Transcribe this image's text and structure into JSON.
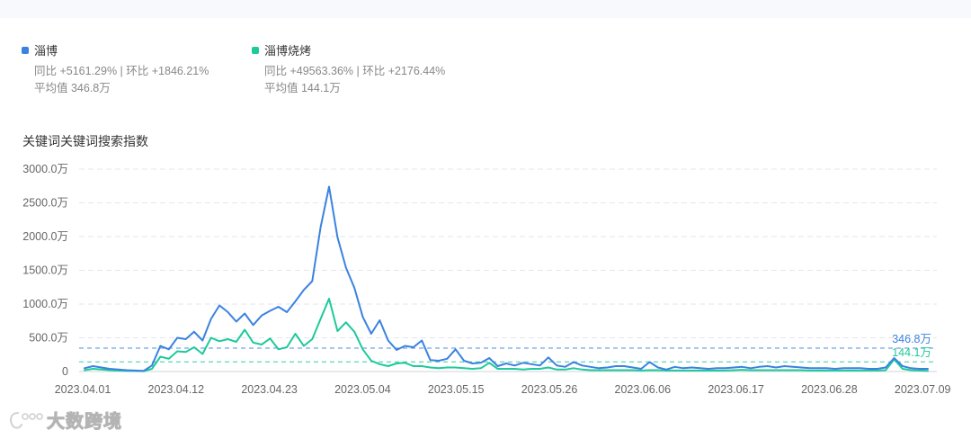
{
  "legend": [
    {
      "name": "淄博",
      "color": "#3b82e0",
      "stat1": "同比 +5161.29% | 环比 +1846.21%",
      "stat2": "平均值 346.8万"
    },
    {
      "name": "淄博烧烤",
      "color": "#1ec99a",
      "stat1": "同比 +49563.36% | 环比 +2176.44%",
      "stat2": "平均值 144.1万"
    }
  ],
  "chart_title": "关键词关键词搜索指数",
  "watermark": "大数跨境",
  "chart_data": {
    "type": "line",
    "title": "关键词关键词搜索指数",
    "ylim": [
      0,
      3000
    ],
    "y_ticks": [
      0,
      500,
      1000,
      1500,
      2000,
      2500,
      3000
    ],
    "y_tick_labels": [
      "0",
      "500.0万",
      "1000.0万",
      "1500.0万",
      "2000.0万",
      "2500.0万",
      "3000.0万"
    ],
    "x_ticks": [
      "2023.04.01",
      "2023.04.12",
      "2023.04.23",
      "2023.05.04",
      "2023.05.15",
      "2023.05.26",
      "2023.06.06",
      "2023.06.17",
      "2023.06.28",
      "2023.07.09"
    ],
    "x_range": [
      "2023.04.01",
      "2023.07.09"
    ],
    "grid": true,
    "legend_position": "top-left",
    "series": [
      {
        "name": "淄博",
        "color": "#3b82e0",
        "average": 346.8,
        "average_label": "346.8万",
        "values": [
          50,
          80,
          60,
          40,
          30,
          20,
          15,
          10,
          90,
          380,
          330,
          500,
          480,
          590,
          460,
          780,
          980,
          880,
          740,
          860,
          690,
          830,
          900,
          960,
          880,
          1040,
          1210,
          1340,
          2140,
          2740,
          1990,
          1540,
          1240,
          810,
          560,
          760,
          460,
          320,
          380,
          360,
          460,
          170,
          160,
          190,
          330,
          160,
          120,
          130,
          200,
          80,
          120,
          90,
          130,
          110,
          90,
          210,
          90,
          70,
          140,
          90,
          70,
          50,
          60,
          80,
          80,
          60,
          40,
          140,
          60,
          30,
          70,
          50,
          60,
          50,
          40,
          50,
          50,
          60,
          70,
          50,
          70,
          80,
          60,
          80,
          70,
          60,
          50,
          50,
          50,
          40,
          50,
          50,
          50,
          40,
          40,
          60,
          200,
          80,
          50,
          40,
          40
        ]
      },
      {
        "name": "淄博烧烤",
        "color": "#1ec99a",
        "average": 144.1,
        "average_label": "144.1万",
        "values": [
          20,
          40,
          30,
          20,
          15,
          10,
          8,
          5,
          40,
          220,
          190,
          300,
          290,
          360,
          260,
          500,
          450,
          480,
          440,
          620,
          430,
          400,
          490,
          330,
          360,
          560,
          380,
          480,
          780,
          1080,
          600,
          730,
          590,
          330,
          160,
          110,
          80,
          120,
          130,
          80,
          80,
          60,
          50,
          60,
          60,
          50,
          40,
          50,
          130,
          40,
          40,
          40,
          30,
          40,
          40,
          60,
          30,
          30,
          50,
          30,
          20,
          20,
          20,
          20,
          20,
          20,
          15,
          20,
          20,
          15,
          15,
          15,
          15,
          15,
          15,
          15,
          15,
          20,
          25,
          20,
          20,
          20,
          20,
          20,
          20,
          20,
          15,
          15,
          15,
          15,
          15,
          15,
          15,
          15,
          15,
          20,
          180,
          40,
          20,
          15,
          10
        ]
      }
    ]
  }
}
